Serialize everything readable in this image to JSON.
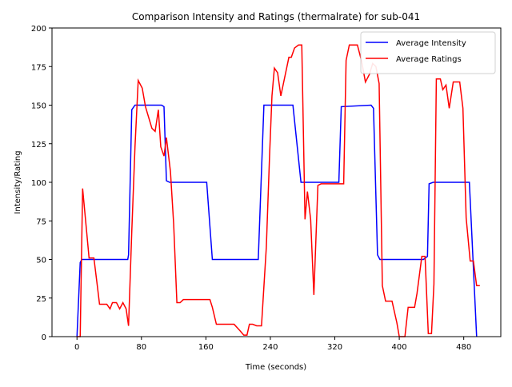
{
  "chart_data": {
    "type": "line",
    "title": "Comparison Intensity and Ratings (thermalrate) for sub-041",
    "x_label": "Time (seconds)",
    "y_label": "Intensity/Rating",
    "xlim": [
      -31,
      526
    ],
    "ylim": [
      0,
      200
    ],
    "xticks": [
      0,
      80,
      160,
      240,
      320,
      400,
      480
    ],
    "yticks": [
      0,
      25,
      50,
      75,
      100,
      125,
      150,
      175,
      200
    ],
    "legend": "upper right",
    "series": [
      {
        "name": "Average Intensity",
        "color": "#0000ff",
        "x": [
          0,
          4,
          6,
          63,
          64,
          68,
          72,
          105,
          108,
          111,
          115,
          161,
          168,
          225,
          232,
          268,
          278,
          325,
          328,
          365,
          368,
          373,
          376,
          430,
          435,
          437,
          442,
          487,
          496
        ],
        "values": [
          0,
          48,
          50,
          50,
          53,
          147,
          150,
          150,
          149,
          101,
          100,
          100,
          50,
          50,
          150,
          150,
          100,
          100,
          149,
          150,
          148,
          53,
          50,
          50,
          52,
          99,
          100,
          100,
          0
        ]
      },
      {
        "name": "Average Ratings",
        "color": "#ff0000",
        "x": [
          0,
          4,
          7,
          12,
          15,
          21,
          25,
          28,
          37,
          41,
          44,
          49,
          53,
          57,
          61,
          64,
          68,
          72,
          76,
          81,
          85,
          93,
          97,
          101,
          104,
          108,
          111,
          116,
          120,
          124,
          128,
          132,
          165,
          168,
          173,
          195,
          202,
          207,
          211,
          214,
          218,
          223,
          229,
          235,
          239,
          242,
          245,
          249,
          253,
          257,
          263,
          266,
          270,
          275,
          279,
          283,
          286,
          290,
          294,
          299,
          303,
          331,
          334,
          338,
          348,
          353,
          358,
          363,
          367,
          371,
          375,
          379,
          383,
          391,
          397,
          400,
          407,
          411,
          419,
          422,
          428,
          432,
          436,
          440,
          443,
          446,
          451,
          454,
          458,
          462,
          467,
          475,
          479,
          483,
          488,
          492,
          496,
          500
        ],
        "values": [
          0,
          0,
          96,
          68,
          51,
          51,
          34,
          21,
          21,
          18,
          22,
          22,
          18,
          22,
          18,
          7,
          68,
          123,
          166,
          161,
          149,
          135,
          133,
          147,
          123,
          117,
          129,
          107,
          73,
          22,
          22,
          24,
          24,
          19,
          8,
          8,
          4,
          1,
          1,
          8,
          8,
          7,
          7,
          58,
          117,
          156,
          174,
          171,
          156,
          166,
          181,
          181,
          187,
          189,
          189,
          76,
          94,
          76,
          27,
          98,
          99,
          99,
          179,
          189,
          189,
          179,
          165,
          170,
          177,
          175,
          164,
          33,
          23,
          23,
          9,
          0,
          0,
          19,
          19,
          28,
          52,
          52,
          2,
          2,
          34,
          167,
          167,
          160,
          163,
          148,
          165,
          165,
          148,
          77,
          49,
          49,
          33,
          33
        ]
      }
    ]
  }
}
